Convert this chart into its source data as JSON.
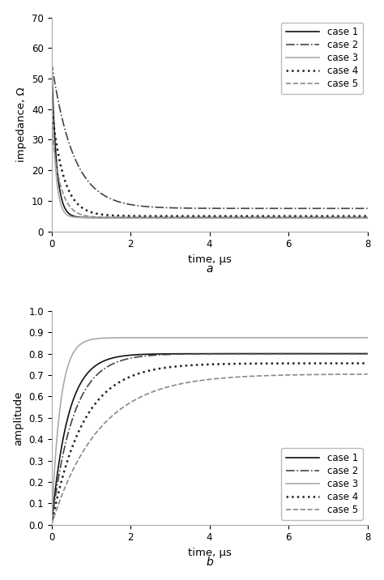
{
  "top_plot": {
    "title_label": "a",
    "xlabel": "time, μs",
    "ylabel": "impedance, Ω",
    "xlim": [
      0,
      8
    ],
    "ylim": [
      0,
      70
    ],
    "yticks": [
      0,
      10,
      20,
      30,
      40,
      50,
      60,
      70
    ],
    "xticks": [
      0,
      2,
      4,
      6,
      8
    ],
    "cases": {
      "case1": {
        "color": "#111111",
        "linestyle": "-",
        "linewidth": 1.2,
        "label": "case 1",
        "A": 4.5,
        "B": 52.0,
        "tau": 0.12
      },
      "case2": {
        "color": "#444444",
        "linestyle": "-.",
        "linewidth": 1.2,
        "label": "case 2",
        "A": 7.5,
        "B": 48.0,
        "tau": 0.55
      },
      "case3": {
        "color": "#aaaaaa",
        "linestyle": "-",
        "linewidth": 1.2,
        "label": "case 3",
        "A": 4.5,
        "B": 46.0,
        "tau": 0.1
      },
      "case4": {
        "color": "#222222",
        "linestyle": ":",
        "linewidth": 1.8,
        "label": "case 4",
        "A": 5.0,
        "B": 36.0,
        "tau": 0.3
      },
      "case5": {
        "color": "#888888",
        "linestyle": "--",
        "linewidth": 1.2,
        "label": "case 5",
        "A": 4.5,
        "B": 30.0,
        "tau": 0.22
      }
    }
  },
  "bottom_plot": {
    "title_label": "b",
    "xlabel": "time, μs",
    "ylabel": "amplitude",
    "xlim": [
      0,
      8
    ],
    "ylim": [
      0,
      1.0
    ],
    "yticks": [
      0,
      0.1,
      0.2,
      0.3,
      0.4,
      0.5,
      0.6,
      0.7,
      0.8,
      0.9,
      1.0
    ],
    "xticks": [
      0,
      2,
      4,
      6,
      8
    ],
    "cases": {
      "case1": {
        "color": "#111111",
        "linestyle": "-",
        "linewidth": 1.2,
        "label": "case 1",
        "A": 0.8,
        "tau": 0.42
      },
      "case2": {
        "color": "#444444",
        "linestyle": "-.",
        "linewidth": 1.2,
        "label": "case 2",
        "A": 0.8,
        "tau": 0.55
      },
      "case3": {
        "color": "#aaaaaa",
        "linestyle": "-",
        "linewidth": 1.2,
        "label": "case 3",
        "A": 0.875,
        "tau": 0.22
      },
      "case4": {
        "color": "#222222",
        "linestyle": ":",
        "linewidth": 1.8,
        "label": "case 4",
        "A": 0.755,
        "tau": 0.8
      },
      "case5": {
        "color": "#888888",
        "linestyle": "--",
        "linewidth": 1.2,
        "label": "case 5",
        "A": 0.705,
        "tau": 1.2
      }
    }
  },
  "legend_fontsize": 8.5,
  "axis_fontsize": 9.5,
  "tick_fontsize": 8.5
}
